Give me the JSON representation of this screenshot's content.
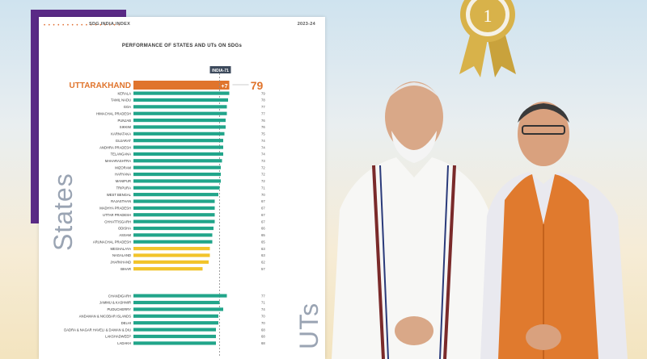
{
  "header": {
    "left": "SDG INDIA INDEX",
    "right": "2023-24",
    "dots": "• • • • • • • • • • • • • • • • •"
  },
  "chart_title": "PERFORMANCE OF STATES AND UTs ON SDGs",
  "side_labels": {
    "states": "States",
    "uts": "UTs"
  },
  "india_marker": {
    "label": "INDIA-71",
    "value": 71
  },
  "highlight": {
    "name": "UTTARAKHAND",
    "score": 79,
    "diff_label": "+7"
  },
  "colors": {
    "teal": "#21a58a",
    "yellow": "#f2c42a",
    "orange": "#e0742c",
    "purple": "#5a2a86"
  },
  "chart_data": {
    "type": "bar",
    "xlim": [
      0,
      100
    ],
    "reference_line": 71,
    "states": [
      {
        "name": "KERALA",
        "value": 79,
        "color": "teal"
      },
      {
        "name": "TAMIL NADU",
        "value": 78,
        "color": "teal"
      },
      {
        "name": "GOA",
        "value": 77,
        "color": "teal"
      },
      {
        "name": "HIMACHAL PRADESH",
        "value": 77,
        "color": "teal"
      },
      {
        "name": "PUNJAB",
        "value": 76,
        "color": "teal"
      },
      {
        "name": "SIKKIM",
        "value": 76,
        "color": "teal"
      },
      {
        "name": "KARNATAKA",
        "value": 75,
        "color": "teal"
      },
      {
        "name": "GUJARAT",
        "value": 74,
        "color": "teal"
      },
      {
        "name": "ANDHRA PRADESH",
        "value": 74,
        "color": "teal"
      },
      {
        "name": "TELANGANA",
        "value": 74,
        "color": "teal"
      },
      {
        "name": "MAHARASHTRA",
        "value": 73,
        "color": "teal"
      },
      {
        "name": "MIZORAM",
        "value": 72,
        "color": "teal"
      },
      {
        "name": "HARYANA",
        "value": 72,
        "color": "teal"
      },
      {
        "name": "MANIPUR",
        "value": 72,
        "color": "teal"
      },
      {
        "name": "TRIPURA",
        "value": 71,
        "color": "teal"
      },
      {
        "name": "WEST BENGAL",
        "value": 70,
        "color": "teal"
      },
      {
        "name": "RAJASTHAN",
        "value": 67,
        "color": "teal"
      },
      {
        "name": "MADHYA PRADESH",
        "value": 67,
        "color": "teal"
      },
      {
        "name": "UTTAR PRADESH",
        "value": 67,
        "color": "teal"
      },
      {
        "name": "CHHATTISGARH",
        "value": 67,
        "color": "teal"
      },
      {
        "name": "ODISHA",
        "value": 66,
        "color": "teal"
      },
      {
        "name": "ASSAM",
        "value": 65,
        "color": "teal"
      },
      {
        "name": "ARUNACHAL PRADESH",
        "value": 65,
        "color": "teal"
      },
      {
        "name": "MEGHALAYA",
        "value": 63,
        "color": "yellow"
      },
      {
        "name": "NAGALAND",
        "value": 63,
        "color": "yellow"
      },
      {
        "name": "JHARKHAND",
        "value": 62,
        "color": "yellow"
      },
      {
        "name": "BIHAR",
        "value": 57,
        "color": "yellow"
      }
    ],
    "uts": [
      {
        "name": "CHANDIGARH",
        "value": 77,
        "color": "teal"
      },
      {
        "name": "JAMMU & KASHMIR",
        "value": 71,
        "color": "teal"
      },
      {
        "name": "PUDUCHERRY",
        "value": 74,
        "color": "teal"
      },
      {
        "name": "ANDAMAN & NICOBAR ISLANDS",
        "value": 70,
        "color": "teal"
      },
      {
        "name": "DELHI",
        "value": 70,
        "color": "teal"
      },
      {
        "name": "DADRA & NAGAR HAVELI & DAMAN & DIU",
        "value": 68,
        "color": "teal"
      },
      {
        "name": "LAKSHADWEEP",
        "value": 68,
        "color": "teal"
      },
      {
        "name": "LADAKH",
        "value": 68,
        "color": "teal"
      }
    ]
  }
}
